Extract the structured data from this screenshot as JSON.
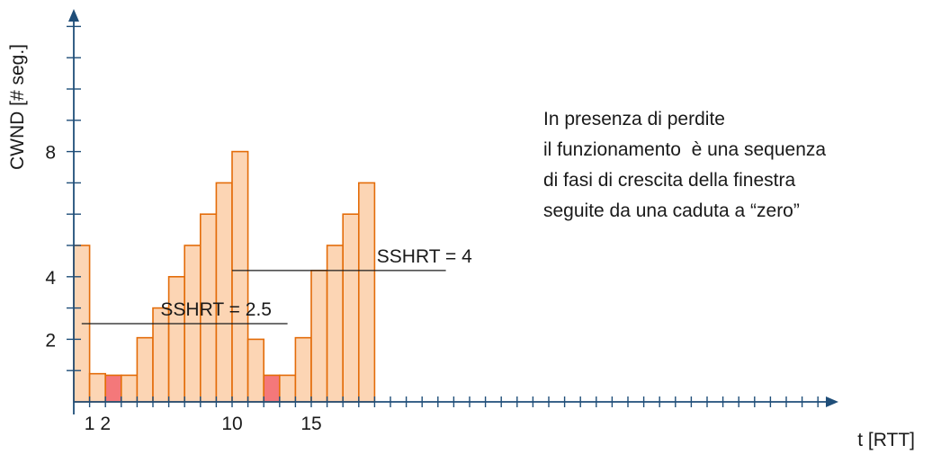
{
  "chart_data": {
    "type": "bar",
    "ylabel": "CWND [# seg.]",
    "xlabel": "t [RTT]",
    "x_tick_labels": [
      {
        "label": "1",
        "x": 1
      },
      {
        "label": "2",
        "x": 2
      },
      {
        "label": "10",
        "x": 10
      },
      {
        "label": "15",
        "x": 15
      }
    ],
    "y_tick_labels": [
      {
        "label": "2",
        "y": 2
      },
      {
        "label": "4",
        "y": 4
      },
      {
        "label": "8",
        "y": 8
      }
    ],
    "ylim": [
      0,
      12.5
    ],
    "xlim": [
      0,
      48
    ],
    "bars": [
      {
        "t": 0,
        "cwnd": 5,
        "loss": false
      },
      {
        "t": 1,
        "cwnd": 0.9,
        "loss": false
      },
      {
        "t": 2,
        "cwnd": 0.85,
        "loss": true
      },
      {
        "t": 3,
        "cwnd": 0.85,
        "loss": false
      },
      {
        "t": 4,
        "cwnd": 2.05,
        "loss": false
      },
      {
        "t": 5,
        "cwnd": 3,
        "loss": false
      },
      {
        "t": 6,
        "cwnd": 4,
        "loss": false
      },
      {
        "t": 7,
        "cwnd": 5,
        "loss": false
      },
      {
        "t": 8,
        "cwnd": 6,
        "loss": false
      },
      {
        "t": 9,
        "cwnd": 7,
        "loss": false
      },
      {
        "t": 10,
        "cwnd": 8,
        "loss": false
      },
      {
        "t": 11,
        "cwnd": 2,
        "loss": false
      },
      {
        "t": 12,
        "cwnd": 0.85,
        "loss": true
      },
      {
        "t": 13,
        "cwnd": 0.85,
        "loss": false
      },
      {
        "t": 14,
        "cwnd": 2.05,
        "loss": false
      },
      {
        "t": 15,
        "cwnd": 4.2,
        "loss": false
      },
      {
        "t": 16,
        "cwnd": 5,
        "loss": false
      },
      {
        "t": 17,
        "cwnd": 6,
        "loss": false
      },
      {
        "t": 18,
        "cwnd": 7,
        "loss": false
      }
    ],
    "thresholds": [
      {
        "label": "SSHRT = 2.5",
        "value": 2.5,
        "from_t": 0.5,
        "to_t": 13.5
      },
      {
        "label": "SSHRT = 4",
        "value": 4.2,
        "from_t": 10,
        "to_t": 23.5
      }
    ],
    "colors": {
      "bar_fill": "#fcd5b4",
      "bar_stroke": "#e36c09",
      "loss_fill": "#f4787a",
      "axis": "#1f4e79",
      "threshold": "#1a1a1a"
    }
  },
  "annotation": {
    "lines": [
      "In presenza di perdite",
      "il funzionamento  è una sequenza",
      "di fasi di crescita della finestra",
      "seguite da una caduta a “zero”"
    ]
  }
}
